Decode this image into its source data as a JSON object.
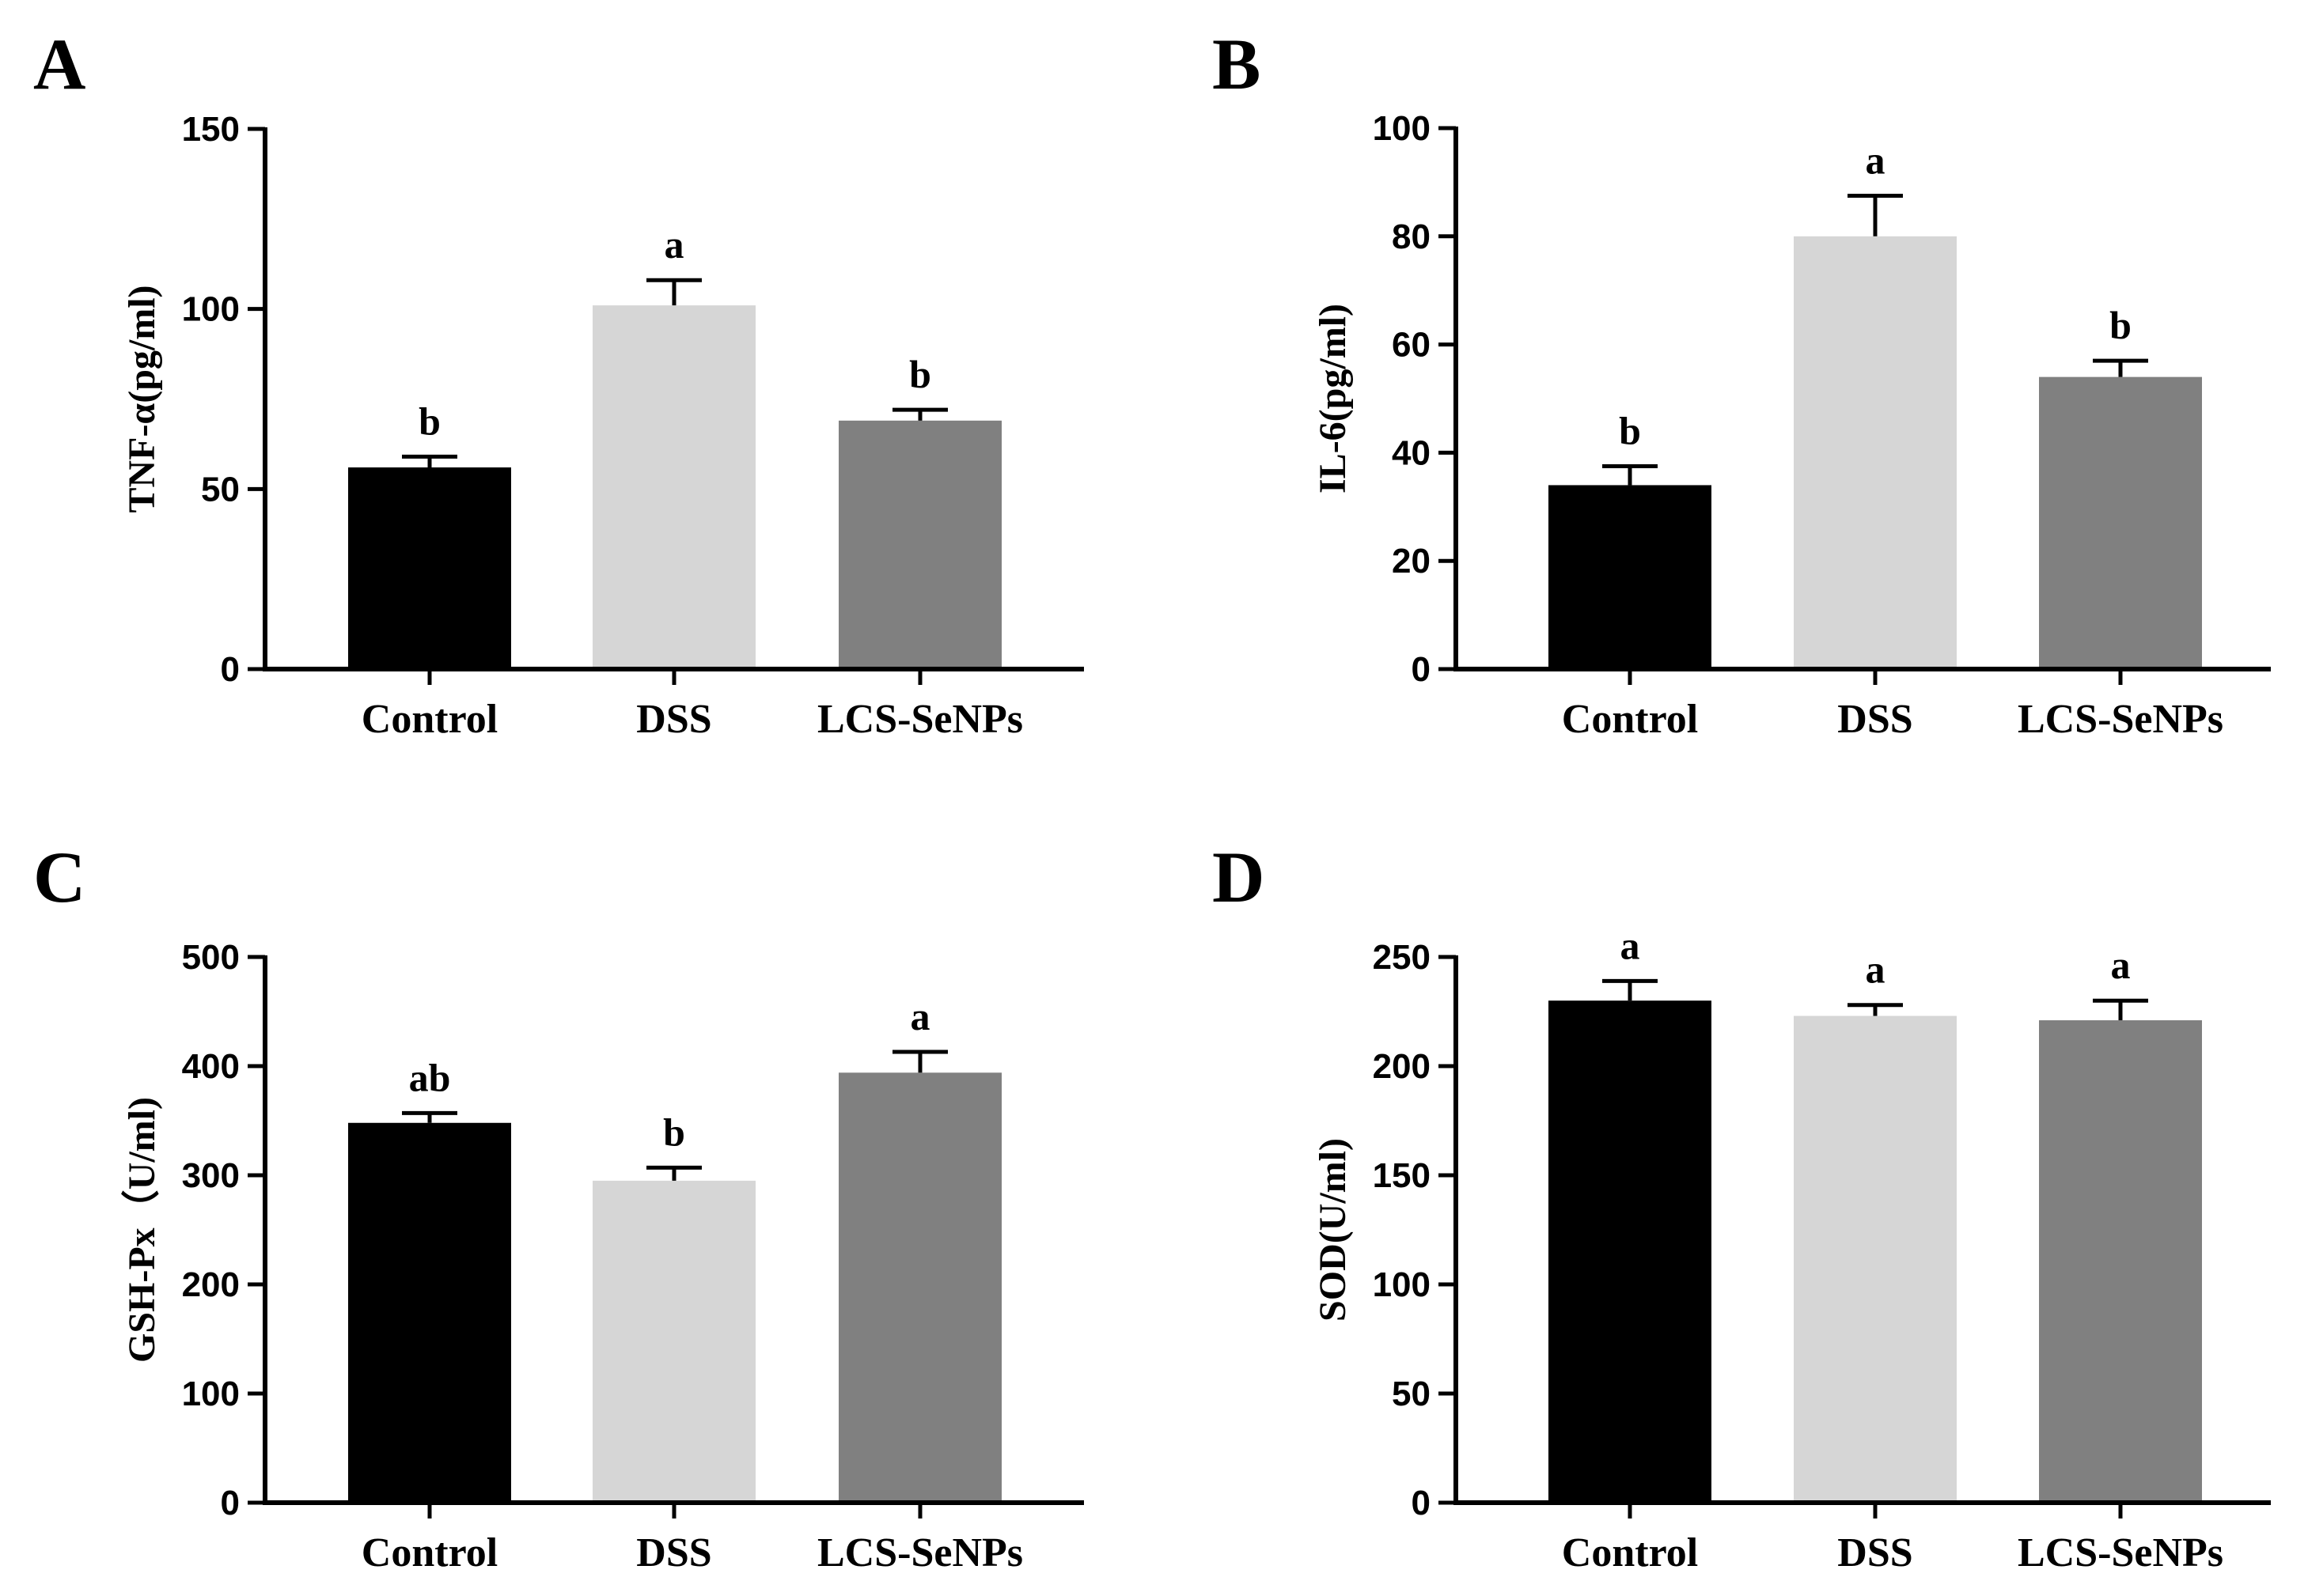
{
  "chart_data": [
    {
      "panel": "A",
      "type": "bar",
      "ylabel": "TNF-α(pg/ml)",
      "ylim": [
        0,
        150
      ],
      "yticks": [
        0,
        50,
        100,
        150
      ],
      "categories": [
        "Control",
        "DSS",
        "LCS-SeNPs"
      ],
      "values": [
        56,
        101,
        69
      ],
      "errors": [
        3,
        7,
        3
      ],
      "significance": [
        "b",
        "a",
        "b"
      ],
      "colors": [
        "#000000",
        "#d6d6d6",
        "#808080"
      ]
    },
    {
      "panel": "B",
      "type": "bar",
      "ylabel": "IL-6(pg/ml)",
      "ylim": [
        0,
        100
      ],
      "yticks": [
        0,
        20,
        40,
        60,
        80,
        100
      ],
      "categories": [
        "Control",
        "DSS",
        "LCS-SeNPs"
      ],
      "values": [
        34,
        80,
        54
      ],
      "errors": [
        3.5,
        7.5,
        3
      ],
      "significance": [
        "b",
        "a",
        "b"
      ],
      "colors": [
        "#000000",
        "#d6d6d6",
        "#808080"
      ]
    },
    {
      "panel": "C",
      "type": "bar",
      "ylabel": "GSH-Px（U/ml)",
      "ylim": [
        0,
        500
      ],
      "yticks": [
        0,
        100,
        200,
        300,
        400,
        500
      ],
      "categories": [
        "Control",
        "DSS",
        "LCS-SeNPs"
      ],
      "values": [
        348,
        295,
        394
      ],
      "errors": [
        9,
        12,
        19
      ],
      "significance": [
        "ab",
        "b",
        "a"
      ],
      "colors": [
        "#000000",
        "#d6d6d6",
        "#808080"
      ]
    },
    {
      "panel": "D",
      "type": "bar",
      "ylabel": "SOD(U/ml)",
      "ylim": [
        0,
        250
      ],
      "yticks": [
        0,
        50,
        100,
        150,
        200,
        250
      ],
      "categories": [
        "Control",
        "DSS",
        "LCS-SeNPs"
      ],
      "values": [
        230,
        223,
        221
      ],
      "errors": [
        9,
        5,
        9
      ],
      "significance": [
        "a",
        "a",
        "a"
      ],
      "colors": [
        "#000000",
        "#d6d6d6",
        "#808080"
      ]
    }
  ]
}
